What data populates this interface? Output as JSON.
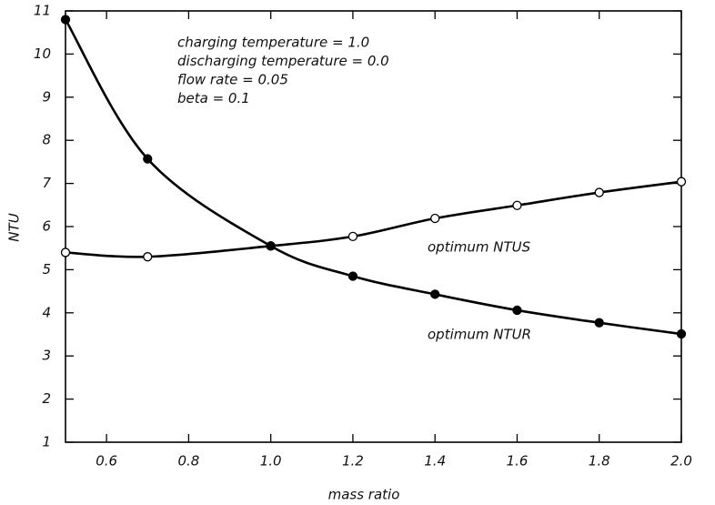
{
  "chart_data": {
    "type": "line",
    "annotations": [
      "charging temperature = 1.0",
      "discharging temperature = 0.0",
      "flow rate = 0.05",
      "beta = 0.1"
    ],
    "xlabel": "mass ratio",
    "ylabel": "NTU",
    "x": [
      0.5,
      0.7,
      1.0,
      1.2,
      1.4,
      1.6,
      1.8,
      2.0
    ],
    "series": [
      {
        "name": "optimum NTUS",
        "color": "#000000",
        "marker": "open",
        "values": [
          5.4,
          5.3,
          5.55,
          5.77,
          6.19,
          6.49,
          6.79,
          7.04
        ]
      },
      {
        "name": "optimum NTUR",
        "color": "#000000",
        "marker": "filled",
        "values": [
          10.8,
          7.57,
          5.55,
          4.85,
          4.43,
          4.06,
          3.77,
          3.51
        ]
      }
    ],
    "xlim": [
      0.5,
      2.0
    ],
    "xticks": [
      0.6,
      0.8,
      {
        "value": 1.0,
        "label": "1.0"
      },
      1.2,
      1.4,
      1.6,
      1.8,
      {
        "value": 2.0,
        "label": "2.0"
      }
    ],
    "ylim": [
      1,
      11
    ],
    "yticks": [
      1,
      2,
      3,
      4,
      5,
      6,
      7,
      8,
      9,
      10,
      11
    ],
    "grid": false
  }
}
